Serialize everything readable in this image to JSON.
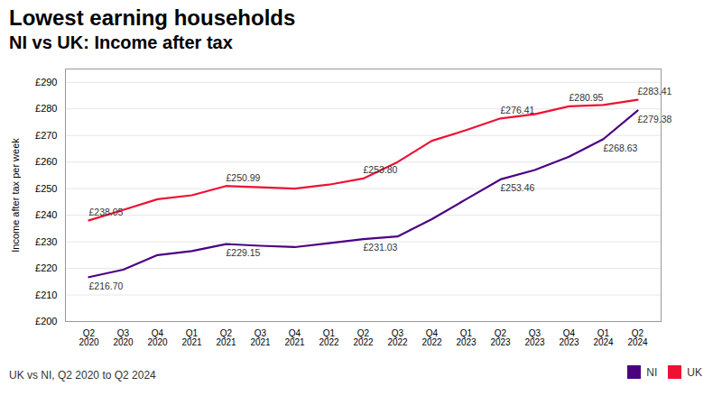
{
  "chart_data": {
    "type": "line",
    "title": "Lowest earning households",
    "subtitle": "NI vs UK: Income after tax",
    "ylabel": "Income after tax per week",
    "footnote": "UK vs NI, Q2 2020 to Q2 2024",
    "categories": [
      "Q2\n2020",
      "Q3\n2020",
      "Q4\n2020",
      "Q1\n2021",
      "Q2\n2021",
      "Q3\n2021",
      "Q4\n2021",
      "Q1\n2022",
      "Q2\n2022",
      "Q3\n2022",
      "Q4\n2022",
      "Q1\n2023",
      "Q2\n2023",
      "Q3\n2023",
      "Q4\n2023",
      "Q1\n2024",
      "Q2\n2024"
    ],
    "series": [
      {
        "name": "NI",
        "color": "#4B0082",
        "values": [
          216.7,
          219.5,
          225.0,
          226.5,
          229.15,
          228.5,
          228.0,
          229.5,
          231.03,
          232.0,
          238.5,
          246.0,
          253.46,
          257.0,
          262.0,
          268.63,
          279.38
        ]
      },
      {
        "name": "UK",
        "color": "#EE1133",
        "values": [
          238.05,
          242.0,
          246.0,
          247.5,
          250.99,
          250.5,
          250.0,
          251.5,
          253.8,
          260.0,
          268.0,
          272.0,
          276.41,
          278.0,
          280.95,
          281.5,
          283.41
        ]
      }
    ],
    "annotations": [
      {
        "text": "£216.70",
        "series": "NI",
        "category": "Q2\n2020",
        "value": 216.7
      },
      {
        "text": "£229.15",
        "series": "NI",
        "category": "Q2\n2021",
        "value": 229.15
      },
      {
        "text": "£231.03",
        "series": "NI",
        "category": "Q2\n2022",
        "value": 231.03
      },
      {
        "text": "£253.46",
        "series": "NI",
        "category": "Q2\n2023",
        "value": 253.46
      },
      {
        "text": "£268.63",
        "series": "NI",
        "category": "Q1\n2024",
        "value": 268.63
      },
      {
        "text": "£279.38",
        "series": "NI",
        "category": "Q2\n2024",
        "value": 279.38
      },
      {
        "text": "£238.05",
        "series": "UK",
        "category": "Q2\n2020",
        "value": 238.05
      },
      {
        "text": "£250.99",
        "series": "UK",
        "category": "Q2\n2021",
        "value": 250.99
      },
      {
        "text": "£253.80",
        "series": "UK",
        "category": "Q2\n2022",
        "value": 253.8
      },
      {
        "text": "£276.41",
        "series": "UK",
        "category": "Q2\n2023",
        "value": 276.41
      },
      {
        "text": "£280.95",
        "series": "UK",
        "category": "Q4\n2023",
        "value": 280.95
      },
      {
        "text": "£283.41",
        "series": "UK",
        "category": "Q2\n2024",
        "value": 283.41
      }
    ],
    "ylim": [
      200,
      295
    ],
    "yticks": [
      {
        "value": 200,
        "label": "£200"
      },
      {
        "value": 210,
        "label": "£210"
      },
      {
        "value": 220,
        "label": "£220"
      },
      {
        "value": 230,
        "label": "£230"
      },
      {
        "value": 240,
        "label": "£240"
      },
      {
        "value": 250,
        "label": "£250"
      },
      {
        "value": 260,
        "label": "£260"
      },
      {
        "value": 270,
        "label": "£270"
      },
      {
        "value": 280,
        "label": "£280"
      },
      {
        "value": 290,
        "label": "£290"
      }
    ],
    "grid": true,
    "legend": "lower right"
  }
}
